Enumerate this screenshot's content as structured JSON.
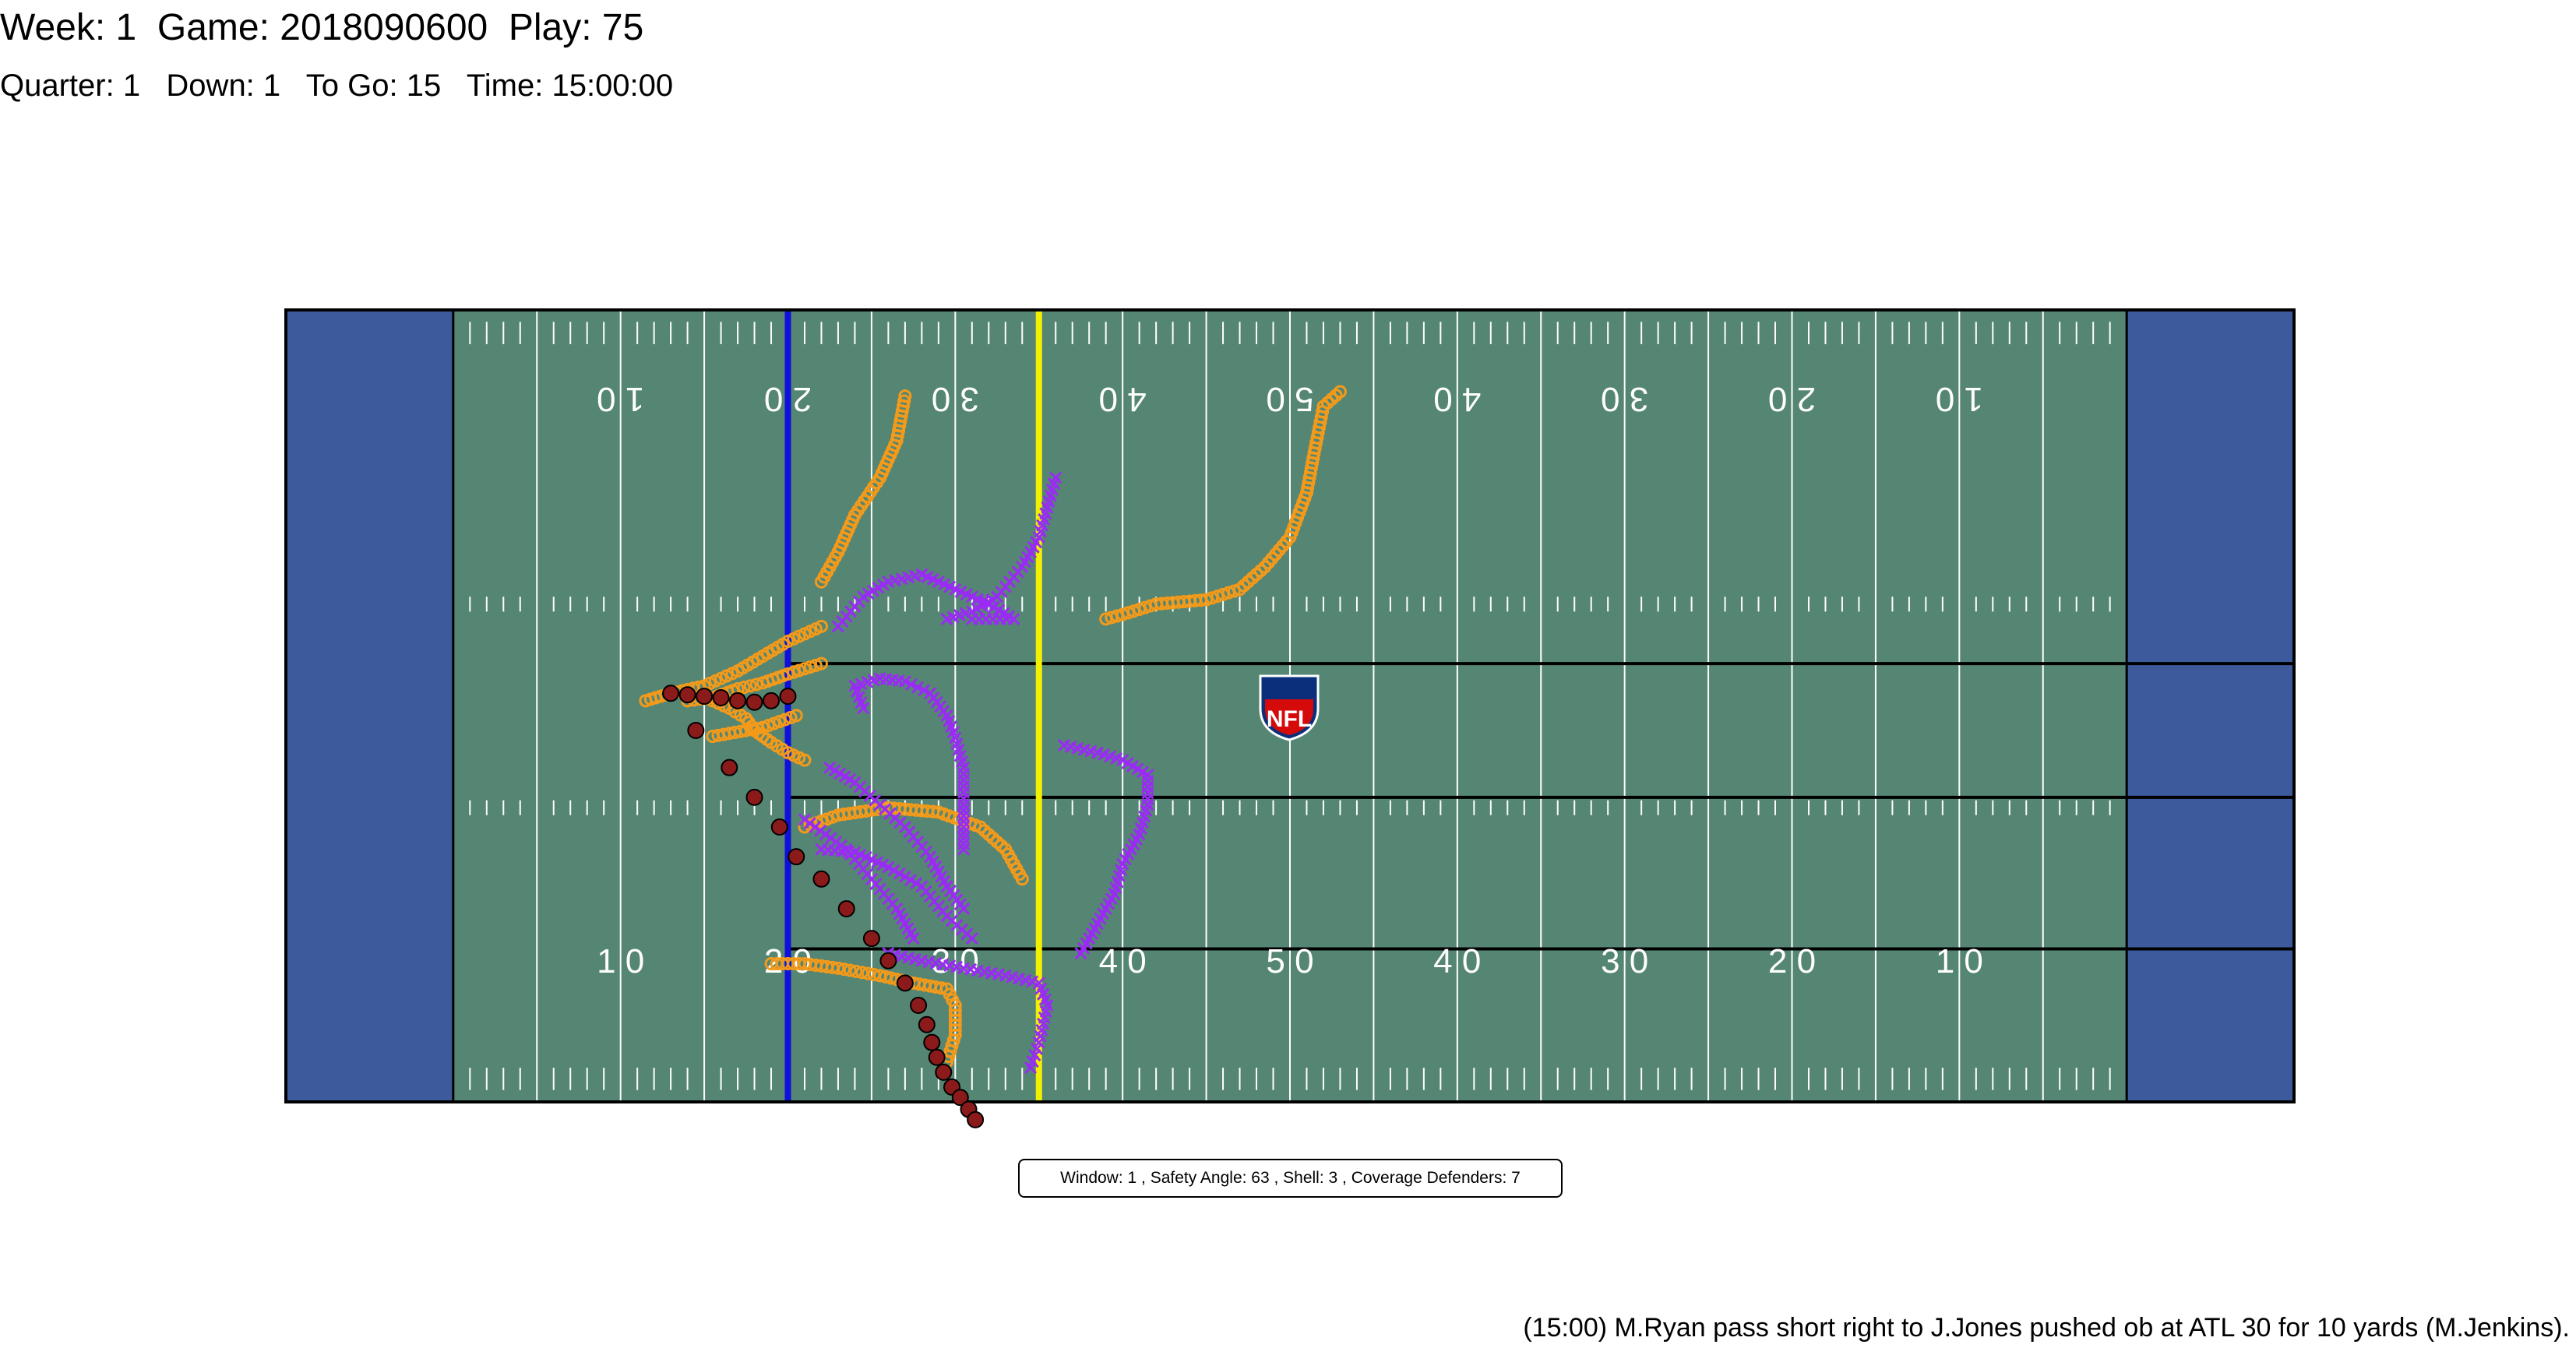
{
  "header": {
    "line1": "Week: 1  Game: 2018090600  Play: 75",
    "line2": "Quarter: 1   Down: 1   To Go: 15   Time: 15:00:00"
  },
  "caption": "(15:00) M.Ryan pass short right to J.Jones pushed ob at ATL 30 for 10 yards (M.Jenkins).",
  "info_box": "Window: 1 , Safety Angle: 63 , Shell: 3 , Coverage Defenders: 7",
  "logo_text": "NFL",
  "colors": {
    "field": "#558673",
    "endzone": "#3d5a9c",
    "line_of_scrimmage": "#1010dd",
    "first_down": "#f0f000",
    "offense": "#f39a1a",
    "defense": "#9a2bf5",
    "ball": "#8b1a1a"
  },
  "chart_data": {
    "type": "scatter",
    "title": "",
    "xlabel": "",
    "ylabel": "",
    "xlim": [
      0,
      120
    ],
    "ylim": [
      0,
      53.3
    ],
    "grid": true,
    "legend": "none",
    "yard_labels": [
      "1 0",
      "2 0",
      "3 0",
      "4 0",
      "5 0",
      "4 0",
      "3 0",
      "2 0",
      "1 0"
    ],
    "line_of_scrimmage": 30,
    "first_down_line": 45,
    "series": [
      {
        "role": "offense",
        "points": [
          [
            63.0,
            47.8
          ],
          [
            62.0,
            46.8
          ],
          [
            61.5,
            44.0
          ],
          [
            61.0,
            41.0
          ],
          [
            60.0,
            38.0
          ],
          [
            58.5,
            36.0
          ],
          [
            57.0,
            34.5
          ],
          [
            55.0,
            33.8
          ],
          [
            52.0,
            33.5
          ],
          [
            50.0,
            32.8
          ],
          [
            49.0,
            32.5
          ]
        ]
      },
      {
        "role": "offense",
        "points": [
          [
            37.0,
            47.5
          ],
          [
            36.5,
            44.5
          ],
          [
            35.5,
            42.0
          ],
          [
            34.0,
            39.5
          ],
          [
            33.0,
            37.0
          ],
          [
            32.0,
            35.0
          ]
        ]
      },
      {
        "role": "offense",
        "points": [
          [
            32.0,
            32.0
          ],
          [
            30.0,
            31.0
          ],
          [
            28.5,
            30.0
          ],
          [
            27.0,
            29.0
          ],
          [
            25.0,
            28.0
          ],
          [
            23.0,
            27.5
          ],
          [
            21.5,
            27.0
          ]
        ]
      },
      {
        "role": "offense",
        "points": [
          [
            32.0,
            29.5
          ],
          [
            30.0,
            28.8
          ],
          [
            28.5,
            28.2
          ],
          [
            27.0,
            27.8
          ],
          [
            25.5,
            27.2
          ],
          [
            24.0,
            27.0
          ]
        ]
      },
      {
        "role": "offense",
        "points": [
          [
            30.5,
            26.0
          ],
          [
            29.5,
            25.6
          ],
          [
            28.5,
            25.2
          ],
          [
            27.5,
            25.0
          ],
          [
            26.5,
            24.8
          ],
          [
            25.5,
            24.6
          ]
        ]
      },
      {
        "role": "offense",
        "points": [
          [
            31.0,
            23.0
          ],
          [
            30.0,
            23.5
          ],
          [
            29.0,
            24.2
          ],
          [
            28.0,
            25.0
          ],
          [
            27.5,
            25.8
          ],
          [
            26.5,
            26.5
          ],
          [
            25.5,
            27.0
          ]
        ]
      },
      {
        "role": "offense",
        "points": [
          [
            31.0,
            18.5
          ],
          [
            33.0,
            19.3
          ],
          [
            36.0,
            19.8
          ],
          [
            39.0,
            19.5
          ],
          [
            41.5,
            18.5
          ],
          [
            43.0,
            17.0
          ],
          [
            44.0,
            15.0
          ]
        ]
      },
      {
        "role": "offense",
        "points": [
          [
            29.0,
            9.3
          ],
          [
            31.0,
            9.3
          ],
          [
            33.0,
            9.0
          ],
          [
            35.5,
            8.5
          ],
          [
            37.5,
            8.0
          ],
          [
            39.5,
            7.6
          ],
          [
            40.0,
            6.5
          ],
          [
            40.0,
            4.5
          ],
          [
            39.5,
            2.7
          ]
        ]
      },
      {
        "role": "defense",
        "points": [
          [
            33.0,
            32.0
          ],
          [
            34.5,
            34.0
          ],
          [
            36.0,
            35.0
          ],
          [
            38.0,
            35.5
          ],
          [
            40.0,
            34.5
          ],
          [
            42.0,
            33.5
          ],
          [
            43.5,
            32.5
          ],
          [
            41.0,
            32.5
          ]
        ]
      },
      {
        "role": "defense",
        "points": [
          [
            46.0,
            42.0
          ],
          [
            45.5,
            40.0
          ],
          [
            45.0,
            38.0
          ],
          [
            44.0,
            36.0
          ],
          [
            42.5,
            34.0
          ],
          [
            41.0,
            33.0
          ],
          [
            39.5,
            32.5
          ]
        ]
      },
      {
        "role": "defense",
        "points": [
          [
            34.5,
            26.5
          ],
          [
            34.0,
            28.0
          ],
          [
            35.5,
            28.5
          ],
          [
            37.0,
            28.3
          ],
          [
            38.5,
            27.5
          ],
          [
            39.5,
            26.0
          ],
          [
            40.0,
            24.5
          ],
          [
            40.5,
            22.5
          ],
          [
            40.5,
            20.0
          ],
          [
            40.5,
            17.0
          ]
        ]
      },
      {
        "role": "defense",
        "points": [
          [
            46.5,
            24.0
          ],
          [
            48.5,
            23.5
          ],
          [
            50.0,
            23.0
          ],
          [
            51.5,
            22.0
          ],
          [
            51.5,
            20.0
          ],
          [
            51.0,
            18.0
          ],
          [
            50.0,
            16.0
          ],
          [
            49.5,
            14.0
          ],
          [
            48.5,
            12.0
          ],
          [
            47.5,
            10.0
          ]
        ]
      },
      {
        "role": "defense",
        "points": [
          [
            32.5,
            22.5
          ],
          [
            34.0,
            21.5
          ],
          [
            35.5,
            20.0
          ],
          [
            37.0,
            18.5
          ],
          [
            38.5,
            16.5
          ],
          [
            39.5,
            14.5
          ],
          [
            40.5,
            13.0
          ]
        ]
      },
      {
        "role": "defense",
        "points": [
          [
            32.0,
            17.0
          ],
          [
            34.0,
            16.8
          ],
          [
            36.0,
            15.8
          ],
          [
            38.0,
            14.5
          ],
          [
            39.5,
            12.5
          ],
          [
            41.0,
            11.0
          ]
        ]
      },
      {
        "role": "defense",
        "points": [
          [
            31.0,
            19.0
          ],
          [
            33.5,
            17.0
          ],
          [
            35.0,
            15.0
          ],
          [
            36.5,
            13.0
          ],
          [
            37.5,
            11.0
          ]
        ]
      },
      {
        "role": "defense",
        "points": [
          [
            36.0,
            10.0
          ],
          [
            38.0,
            9.5
          ],
          [
            40.5,
            9.0
          ],
          [
            43.0,
            8.5
          ],
          [
            45.0,
            8.0
          ],
          [
            45.5,
            6.5
          ],
          [
            45.0,
            4.0
          ],
          [
            44.5,
            2.3
          ]
        ]
      },
      {
        "role": "ball",
        "points": [
          [
            23.0,
            27.5
          ],
          [
            24.0,
            27.4
          ],
          [
            25.0,
            27.3
          ],
          [
            26.0,
            27.2
          ],
          [
            27.0,
            27.0
          ],
          [
            28.0,
            26.9
          ],
          [
            29.0,
            27.0
          ],
          [
            30.0,
            27.3
          ],
          [
            24.5,
            25.0
          ],
          [
            26.5,
            22.5
          ],
          [
            28.0,
            20.5
          ],
          [
            29.5,
            18.5
          ],
          [
            30.5,
            16.5
          ],
          [
            32.0,
            15.0
          ],
          [
            33.5,
            13.0
          ],
          [
            35.0,
            11.0
          ],
          [
            36.0,
            9.5
          ],
          [
            37.0,
            8.0
          ],
          [
            37.8,
            6.5
          ],
          [
            38.3,
            5.2
          ],
          [
            38.6,
            4.0
          ],
          [
            38.9,
            3.0
          ],
          [
            39.3,
            2.0
          ],
          [
            39.8,
            1.0
          ],
          [
            40.3,
            0.3
          ],
          [
            40.8,
            -0.5
          ],
          [
            41.2,
            -1.2
          ]
        ]
      }
    ]
  }
}
